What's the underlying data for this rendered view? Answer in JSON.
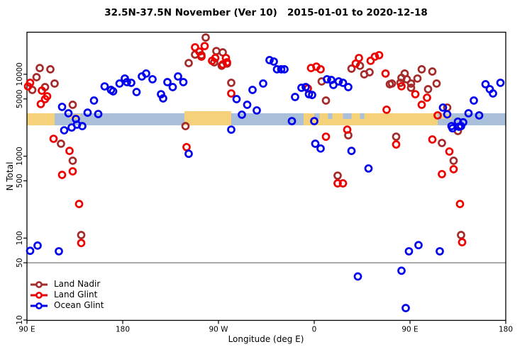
{
  "title": "32.5N-37.5N November (Ver 10)   2015-01-01 to 2020-12-18",
  "x_axis": {
    "label": "Longitude (deg E)",
    "ticks": [
      {
        "lon": 90,
        "label": "90 E"
      },
      {
        "lon": 180,
        "label": "180"
      },
      {
        "lon": 270,
        "label": "90 W"
      },
      {
        "lon": 360,
        "label": "0"
      },
      {
        "lon": 450,
        "label": "90 E"
      },
      {
        "lon": 540,
        "label": "180"
      }
    ]
  },
  "y_axis": {
    "label": "N Total",
    "scale": "log",
    "ticks": [
      {
        "value": 10,
        "label": "10"
      },
      {
        "value": 50,
        "label": "50"
      },
      {
        "value": 100,
        "label": "100"
      },
      {
        "value": 500,
        "label": "500"
      },
      {
        "value": 1000,
        "label": "1000"
      },
      {
        "value": 5000,
        "label": "5000"
      },
      {
        "value": 10000,
        "label": "10000"
      }
    ]
  },
  "reference_line": {
    "value": 50,
    "color": "#555555"
  },
  "map_band": {
    "land_color": "#F5D27A",
    "ocean_color": "#AABFD9",
    "land_segments": [
      [
        90,
        116
      ],
      [
        238,
        282
      ],
      [
        350,
        476
      ]
    ],
    "ocean_segments": [
      [
        116,
        238
      ],
      [
        282,
        350
      ],
      [
        476,
        540
      ]
    ],
    "islands": [
      [
        130,
        133
      ],
      [
        134.5,
        140
      ],
      [
        480,
        483
      ],
      [
        484.5,
        489
      ]
    ],
    "ocean_patches": [
      [
        360,
        365
      ],
      [
        373,
        377
      ],
      [
        387,
        395
      ],
      [
        403,
        407
      ]
    ],
    "bump_segment": [
      238,
      282
    ]
  },
  "legend": {
    "items": [
      {
        "label": "Land Nadir",
        "color": "#A52A2A"
      },
      {
        "label": "Land Glint",
        "color": "#EE0000"
      },
      {
        "label": "Ocean Glint",
        "color": "#0000EE"
      }
    ]
  },
  "chart_data": {
    "type": "scatter",
    "xlim": [
      90,
      540
    ],
    "ylim": [
      10,
      32000
    ],
    "y_scale": "log",
    "series": [
      {
        "name": "Land Nadir",
        "color": "#A52A2A",
        "points": [
          [
            102,
            11900
          ],
          [
            112,
            11500
          ],
          [
            99,
            9220
          ],
          [
            116,
            7710
          ],
          [
            107,
            6980
          ],
          [
            95,
            6440
          ],
          [
            133,
            4240
          ],
          [
            122,
            1420
          ],
          [
            133,
            881
          ],
          [
            141,
            109
          ],
          [
            239,
            2330
          ],
          [
            258,
            28100
          ],
          [
            248,
            17400
          ],
          [
            254,
            17100
          ],
          [
            242,
            13700
          ],
          [
            268,
            19200
          ],
          [
            274,
            18500
          ],
          [
            266,
            14000
          ],
          [
            273,
            12700
          ],
          [
            278,
            13500
          ],
          [
            282,
            7870
          ],
          [
            367,
            8180
          ],
          [
            371,
            4780
          ],
          [
            382,
            579
          ],
          [
            392,
            1800
          ],
          [
            395,
            11700
          ],
          [
            403,
            12700
          ],
          [
            407,
            9980
          ],
          [
            412,
            10600
          ],
          [
            433,
            7710
          ],
          [
            442,
            9040
          ],
          [
            445,
            10200
          ],
          [
            431,
            7560
          ],
          [
            437,
            1730
          ],
          [
            447,
            8690
          ],
          [
            461,
            11500
          ],
          [
            471,
            10800
          ],
          [
            441,
            7870
          ],
          [
            451,
            7710
          ],
          [
            451,
            6840
          ],
          [
            457,
            8870
          ],
          [
            467,
            6570
          ],
          [
            475,
            7710
          ],
          [
            480,
            1450
          ],
          [
            485,
            3920
          ],
          [
            491,
            881
          ],
          [
            495,
            2030
          ],
          [
            498,
            109
          ]
        ]
      },
      {
        "name": "Land Glint",
        "color": "#EE0000",
        "points": [
          [
            93,
            7870
          ],
          [
            91,
            7110
          ],
          [
            104,
            6310
          ],
          [
            109,
            5380
          ],
          [
            107,
            4970
          ],
          [
            103,
            4330
          ],
          [
            115,
            1630
          ],
          [
            130,
            1160
          ],
          [
            133,
            653
          ],
          [
            123,
            591
          ],
          [
            139,
            261
          ],
          [
            141,
            87
          ],
          [
            248,
            21300
          ],
          [
            257,
            22100
          ],
          [
            252,
            18900
          ],
          [
            254,
            16400
          ],
          [
            264,
            14600
          ],
          [
            267,
            15800
          ],
          [
            277,
            15800
          ],
          [
            278,
            14000
          ],
          [
            274,
            13200
          ],
          [
            282,
            5830
          ],
          [
            240,
            1290
          ],
          [
            357,
            11900
          ],
          [
            362,
            12400
          ],
          [
            366,
            11500
          ],
          [
            354,
            6700
          ],
          [
            371,
            1730
          ],
          [
            391,
            2110
          ],
          [
            382,
            466
          ],
          [
            387,
            466
          ],
          [
            402,
            15800
          ],
          [
            399,
            13500
          ],
          [
            413,
            14600
          ],
          [
            417,
            16400
          ],
          [
            421,
            17100
          ],
          [
            427,
            10200
          ],
          [
            428,
            3690
          ],
          [
            437,
            1390
          ],
          [
            442,
            7130
          ],
          [
            455,
            5710
          ],
          [
            461,
            4240
          ],
          [
            466,
            5180
          ],
          [
            476,
            3150
          ],
          [
            471,
            1600
          ],
          [
            487,
            1140
          ],
          [
            491,
            693
          ],
          [
            480,
            604
          ],
          [
            497,
            261
          ],
          [
            499,
            89
          ]
        ]
      },
      {
        "name": "Ocean Glint",
        "color": "#0000EE",
        "points": [
          [
            123,
            4000
          ],
          [
            129,
            3340
          ],
          [
            136,
            2850
          ],
          [
            132,
            2240
          ],
          [
            137,
            2430
          ],
          [
            142,
            2330
          ],
          [
            125,
            2070
          ],
          [
            147,
            3400
          ],
          [
            157,
            3270
          ],
          [
            153,
            4780
          ],
          [
            163,
            7110
          ],
          [
            169,
            6440
          ],
          [
            171,
            6190
          ],
          [
            177,
            7710
          ],
          [
            182,
            8870
          ],
          [
            184,
            8020
          ],
          [
            188,
            7870
          ],
          [
            193,
            6070
          ],
          [
            198,
            9400
          ],
          [
            202,
            10200
          ],
          [
            208,
            8690
          ],
          [
            216,
            5710
          ],
          [
            218,
            5070
          ],
          [
            222,
            8020
          ],
          [
            227,
            6980
          ],
          [
            232,
            9400
          ],
          [
            237,
            8020
          ],
          [
            242,
            1070
          ],
          [
            282,
            2110
          ],
          [
            287,
            4970
          ],
          [
            292,
            3210
          ],
          [
            297,
            4240
          ],
          [
            302,
            6440
          ],
          [
            306,
            3620
          ],
          [
            312,
            7710
          ],
          [
            318,
            14900
          ],
          [
            322,
            14300
          ],
          [
            325,
            11500
          ],
          [
            329,
            11500
          ],
          [
            332,
            11500
          ],
          [
            339,
            2680
          ],
          [
            342,
            5280
          ],
          [
            348,
            6840
          ],
          [
            352,
            6980
          ],
          [
            355,
            5710
          ],
          [
            358,
            5590
          ],
          [
            360,
            2680
          ],
          [
            361,
            1420
          ],
          [
            366,
            1240
          ],
          [
            372,
            8690
          ],
          [
            376,
            8510
          ],
          [
            378,
            7410
          ],
          [
            383,
            8180
          ],
          [
            387,
            7870
          ],
          [
            392,
            6980
          ],
          [
            395,
            1160
          ],
          [
            411,
            708
          ],
          [
            489,
            2330
          ],
          [
            496,
            2290
          ],
          [
            481,
            3920
          ],
          [
            485,
            3240
          ],
          [
            495,
            2640
          ],
          [
            500,
            2590
          ],
          [
            490,
            2190
          ],
          [
            498,
            2330
          ],
          [
            505,
            3340
          ],
          [
            510,
            4780
          ],
          [
            515,
            3150
          ],
          [
            521,
            7560
          ],
          [
            525,
            6570
          ],
          [
            528,
            5830
          ],
          [
            535,
            7870
          ],
          [
            458,
            82
          ],
          [
            449,
            69
          ],
          [
            478,
            69
          ],
          [
            401,
            34
          ],
          [
            442,
            40
          ],
          [
            446,
            14
          ],
          [
            100,
            81
          ],
          [
            93,
            70
          ],
          [
            120,
            69
          ]
        ]
      }
    ]
  }
}
